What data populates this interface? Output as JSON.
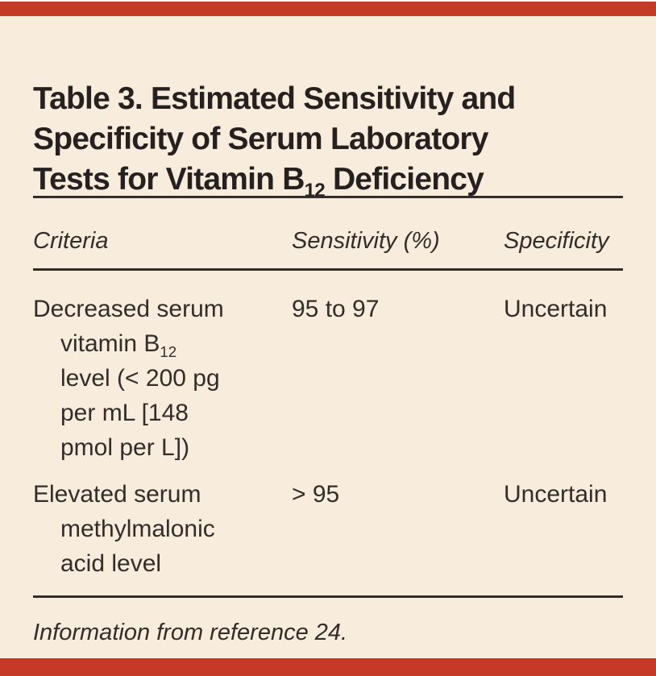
{
  "colors": {
    "accent_red": "#c43a26",
    "background_cream": "#f8ecdc",
    "ink": "#332d29"
  },
  "title": {
    "line1": "Table 3. Estimated Sensitivity and",
    "line2": "Specificity of Serum Laboratory",
    "line3": {
      "pre": "Tests for Vitamin B",
      "sub": "12",
      "post": " Deficiency"
    }
  },
  "header": {
    "criteria": "Criteria",
    "sensitivity": "Sensitivity (%)",
    "specificity": "Specificity"
  },
  "rows": [
    {
      "criteria": {
        "line1": "Decreased serum",
        "line2": {
          "pre": "vitamin B",
          "sub": "12"
        },
        "line3": "level (< 200 pg",
        "line4": "per mL [148",
        "line5": "pmol per L])"
      },
      "sensitivity": "95 to 97",
      "specificity": "Uncertain"
    },
    {
      "criteria": {
        "line1": "Elevated serum",
        "line2": "methylmalonic",
        "line3": "acid level"
      },
      "sensitivity": "> 95",
      "specificity": "Uncertain"
    }
  ],
  "footnote": "Information from reference 24."
}
